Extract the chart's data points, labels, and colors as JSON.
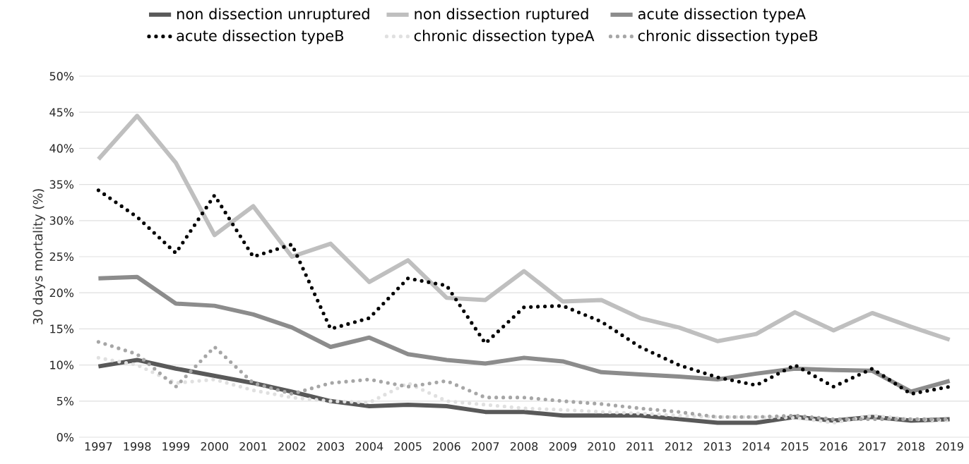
{
  "chart_data": {
    "type": "line",
    "ylabel": "30 days mortality (%)",
    "categories": [
      "1997",
      "1998",
      "1999",
      "2000",
      "2001",
      "2002",
      "2003",
      "2004",
      "2005",
      "2006",
      "2007",
      "2008",
      "2009",
      "2010",
      "2011",
      "2012",
      "2013",
      "2014",
      "2015",
      "2016",
      "2017",
      "2018",
      "2019"
    ],
    "ylim": [
      0,
      50
    ],
    "yticks": [
      {
        "value": 0,
        "label": "0%"
      },
      {
        "value": 5,
        "label": "5%"
      },
      {
        "value": 10,
        "label": "10%"
      },
      {
        "value": 15,
        "label": "15%"
      },
      {
        "value": 20,
        "label": "20%"
      },
      {
        "value": 25,
        "label": "25%"
      },
      {
        "value": 30,
        "label": "30%"
      },
      {
        "value": 35,
        "label": "35%"
      },
      {
        "value": 40,
        "label": "40%"
      },
      {
        "value": 45,
        "label": "45%"
      },
      {
        "value": 50,
        "label": "50%"
      }
    ],
    "grid": "y",
    "legend": "top",
    "series": [
      {
        "name": "non dissection unruptured",
        "color": "#595959",
        "line_style": "solid",
        "values": [
          9.8,
          10.7,
          9.5,
          8.5,
          7.5,
          6.3,
          5,
          4.3,
          4.5,
          4.3,
          3.5,
          3.5,
          3,
          3,
          3,
          2.5,
          2,
          2,
          2.8,
          2.3,
          2.8,
          2.3,
          2.5
        ]
      },
      {
        "name": "non dissection ruptured",
        "color": "#bfbfbf",
        "line_style": "solid",
        "values": [
          38.5,
          44.5,
          38,
          28,
          32,
          25,
          26.8,
          21.5,
          24.5,
          19.3,
          19,
          23,
          18.8,
          19,
          16.5,
          15.2,
          13.3,
          14.3,
          17.3,
          14.8,
          17.2,
          15.3,
          13.5
        ]
      },
      {
        "name": "acute dissection typeA",
        "color": "#8c8c8c",
        "line_style": "solid",
        "values": [
          22,
          22.2,
          18.5,
          18.2,
          17,
          15.2,
          12.5,
          13.8,
          11.5,
          10.7,
          10.2,
          11,
          10.5,
          9,
          8.7,
          8.4,
          8,
          8.8,
          9.5,
          9.3,
          9.2,
          6.3,
          7.8
        ]
      },
      {
        "name": "acute dissection typeB",
        "color": "#000000",
        "line_style": "dotted",
        "values": [
          34.2,
          30.5,
          25.5,
          33.5,
          25,
          26.7,
          15,
          16.5,
          22,
          21,
          13,
          18,
          18.2,
          16,
          12.5,
          10,
          8.3,
          7.2,
          10,
          7,
          9.5,
          6,
          7
        ]
      },
      {
        "name": "chronic dissection typeA",
        "color": "#e0e0e0",
        "line_style": "dotted",
        "values": [
          11,
          10,
          7.5,
          8,
          6.5,
          5.5,
          5,
          4.8,
          7.5,
          5,
          4.5,
          4,
          3.8,
          3.5,
          3.3,
          3,
          2.8,
          2.8,
          2.7,
          2,
          3,
          2.5,
          2.3
        ]
      },
      {
        "name": "chronic dissection typeB",
        "color": "#a6a6a6",
        "line_style": "dotted",
        "values": [
          13.2,
          11.5,
          7,
          12.5,
          7.5,
          6,
          7.5,
          8,
          7,
          7.8,
          5.5,
          5.5,
          5,
          4.6,
          4,
          3.5,
          2.8,
          2.8,
          3,
          2.5,
          2.5,
          2.5,
          2.5
        ]
      }
    ]
  }
}
